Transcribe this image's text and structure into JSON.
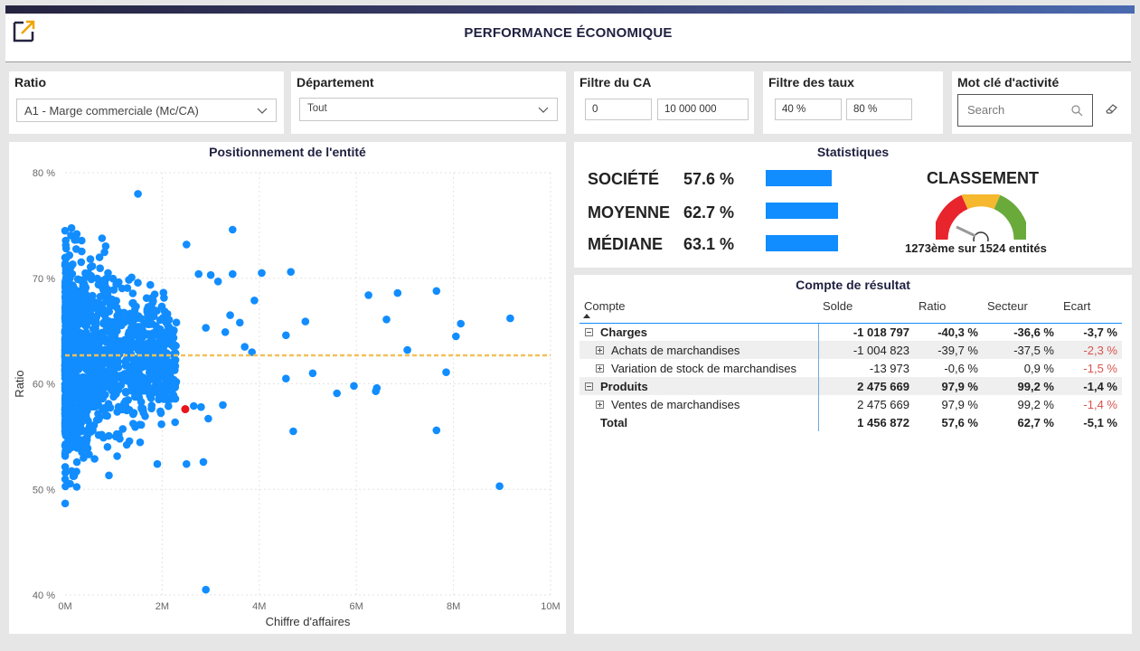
{
  "header": {
    "title": "PERFORMANCE ÉCONOMIQUE",
    "logo_icon": "expand-arrow-icon"
  },
  "colors": {
    "accent": "#118dff",
    "marker": "#e8151b",
    "average_line": "#f2c05a",
    "negative": "#d9534f"
  },
  "slicers": {
    "ratio": {
      "label": "Ratio",
      "value": "A1 - Marge commerciale (Mc/CA)"
    },
    "departement": {
      "label": "Département",
      "value": "Tout"
    },
    "ca": {
      "label": "Filtre du CA",
      "min": "0",
      "max": "10 000 000"
    },
    "taux": {
      "label": "Filtre des taux",
      "min": "40 %",
      "max": "80 %"
    },
    "motcle": {
      "label": "Mot clé d'activité",
      "placeholder": "Search"
    }
  },
  "scatter": {
    "title": "Positionnement de l'entité",
    "chart_data": {
      "type": "scatter",
      "xlabel": "Chiffre d'affaires",
      "ylabel": "Ratio",
      "xlim": [
        0,
        10000000
      ],
      "ylim": [
        40,
        80
      ],
      "x_ticks": [
        "0M",
        "2M",
        "4M",
        "6M",
        "8M",
        "10M"
      ],
      "y_ticks": [
        "40 %",
        "50 %",
        "60 %",
        "70 %",
        "80 %"
      ],
      "average_line_y": 62.7,
      "highlight": {
        "x": 2475669,
        "y": 57.6
      },
      "outliers": [
        [
          9170000,
          66.2
        ],
        [
          8950000,
          50.3
        ],
        [
          7850000,
          61.1
        ],
        [
          8050000,
          64.5
        ],
        [
          8150000,
          65.7
        ],
        [
          7650000,
          55.6
        ],
        [
          7650000,
          68.8
        ],
        [
          7050000,
          63.2
        ],
        [
          6850000,
          68.6
        ],
        [
          6620000,
          66.1
        ],
        [
          6250000,
          68.4
        ],
        [
          5950000,
          59.8
        ],
        [
          6420000,
          59.6
        ],
        [
          6400000,
          59.3
        ],
        [
          5600000,
          59.1
        ],
        [
          5100000,
          61.0
        ],
        [
          4950000,
          65.9
        ],
        [
          4700000,
          55.5
        ],
        [
          4550000,
          60.5
        ],
        [
          4650000,
          70.6
        ],
        [
          4550000,
          64.6
        ],
        [
          4050000,
          70.5
        ],
        [
          3900000,
          67.9
        ],
        [
          3850000,
          63.0
        ],
        [
          3700000,
          63.5
        ],
        [
          3600000,
          65.8
        ],
        [
          3450000,
          70.4
        ],
        [
          3450000,
          74.6
        ],
        [
          3400000,
          66.5
        ],
        [
          3300000,
          64.9
        ],
        [
          3250000,
          58.0
        ],
        [
          3150000,
          69.7
        ],
        [
          3000000,
          70.3
        ],
        [
          2900000,
          65.3
        ],
        [
          2800000,
          57.8
        ],
        [
          2850000,
          52.6
        ],
        [
          2950000,
          56.7
        ],
        [
          2900000,
          40.5
        ],
        [
          2500000,
          52.4
        ],
        [
          2500000,
          73.2
        ],
        [
          2750000,
          70.4
        ],
        [
          2650000,
          57.9
        ],
        [
          1500000,
          78.0
        ],
        [
          1900000,
          52.4
        ]
      ],
      "cluster": {
        "x_range": [
          0,
          2300000
        ],
        "y_range": [
          41,
          80
        ],
        "count": 1480
      }
    }
  },
  "stats": {
    "title": "Statistiques",
    "rows": [
      {
        "label": "SOCIÉTÉ",
        "value": "57.6 %",
        "pct": 57.6
      },
      {
        "label": "MOYENNE",
        "value": "62.7 %",
        "pct": 62.7
      },
      {
        "label": "MÉDIANE",
        "value": "63.1 %",
        "pct": 63.1
      }
    ],
    "classement_title": "CLASSEMENT",
    "classement_text": "1273ème sur 1524 entités",
    "rank": 1273,
    "total": 1524
  },
  "pl": {
    "title": "Compte de résultat",
    "columns": [
      "Compte",
      "Solde",
      "Ratio",
      "Secteur",
      "Ecart"
    ],
    "rows": [
      {
        "name": "Charges",
        "solde": "-1 018 797",
        "ratio": "-40,3 %",
        "secteur": "-36,6 %",
        "ecart": "-3,7 %",
        "level": 0,
        "toggle": "minus",
        "bold": true,
        "shade": false,
        "neg": false
      },
      {
        "name": "Achats de marchandises",
        "solde": "-1 004 823",
        "ratio": "-39,7 %",
        "secteur": "-37,5 %",
        "ecart": "-2,3 %",
        "level": 1,
        "toggle": "plus",
        "bold": false,
        "shade": true,
        "neg": true
      },
      {
        "name": "Variation de stock de marchandises",
        "solde": "-13 973",
        "ratio": "-0,6 %",
        "secteur": "0,9 %",
        "ecart": "-1,5 %",
        "level": 1,
        "toggle": "plus",
        "bold": false,
        "shade": false,
        "neg": true
      },
      {
        "name": "Produits",
        "solde": "2 475 669",
        "ratio": "97,9 %",
        "secteur": "99,2 %",
        "ecart": "-1,4 %",
        "level": 0,
        "toggle": "minus",
        "bold": true,
        "shade": true,
        "neg": false
      },
      {
        "name": "Ventes de marchandises",
        "solde": "2 475 669",
        "ratio": "97,9 %",
        "secteur": "99,2 %",
        "ecart": "-1,4 %",
        "level": 1,
        "toggle": "plus",
        "bold": false,
        "shade": false,
        "neg": true
      },
      {
        "name": "Total",
        "solde": "1 456 872",
        "ratio": "57,6 %",
        "secteur": "62,7 %",
        "ecart": "-5,1 %",
        "level": 0,
        "toggle": "none",
        "bold": true,
        "shade": false,
        "neg": false
      }
    ]
  }
}
